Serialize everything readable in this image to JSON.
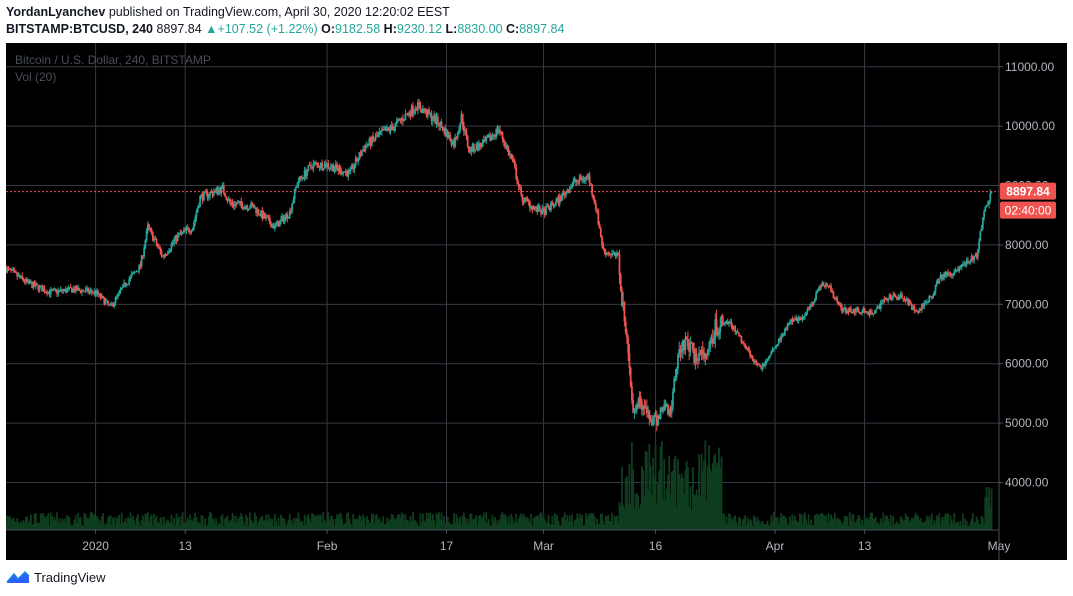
{
  "header": {
    "author": "YordanLyanchev",
    "publish_text": "published on TradingView.com, April 30, 2020 12:20:02 EEST"
  },
  "ohlc": {
    "symbol": "BITSTAMP:BTCUSD, 240",
    "last": "8897.84",
    "change": "+107.52 (+1.22%)",
    "open_label": "O:",
    "open": "9182.58",
    "high_label": "H:",
    "high": "9230.12",
    "low_label": "L:",
    "low": "8830.00",
    "close_label": "C:",
    "close": "8897.84"
  },
  "chart_meta": {
    "series_title": "Bitcoin / U.S. Dollar, 240, BITSTAMP",
    "volume_title": "Vol (20)",
    "price_label": "8897.84",
    "countdown_label": "02:40:00"
  },
  "footer": {
    "brand": "TradingView"
  },
  "colors": {
    "up": "#26a69a",
    "down": "#ef5350",
    "volume": "#0f3d1f",
    "grid": "#363a45",
    "axis_text": "#b2b5be",
    "background": "#000000"
  },
  "chart_data": {
    "type": "candlestick",
    "title": "Bitcoin / U.S. Dollar, 240, BITSTAMP",
    "ylim": [
      3200,
      11400
    ],
    "yticks": [
      4000,
      5000,
      6000,
      7000,
      8000,
      9000,
      10000,
      11000
    ],
    "ytick_labels": [
      "4000.00",
      "5000.00",
      "6000.00",
      "7000.00",
      "8000.00",
      "9000.00",
      "10000.00",
      "11000.00"
    ],
    "xlim": [
      "2019-12-20",
      "2020-05-01"
    ],
    "xticks": [
      {
        "date": "2020-01-01",
        "label": "2020"
      },
      {
        "date": "2020-01-13",
        "label": "13"
      },
      {
        "date": "2020-02-01",
        "label": "Feb"
      },
      {
        "date": "2020-02-17",
        "label": "17"
      },
      {
        "date": "2020-03-01",
        "label": "Mar"
      },
      {
        "date": "2020-03-16",
        "label": "16"
      },
      {
        "date": "2020-04-01",
        "label": "Apr"
      },
      {
        "date": "2020-04-13",
        "label": "13"
      },
      {
        "date": "2020-05-01",
        "label": "May"
      }
    ],
    "last_price": 8897.84,
    "grid": true,
    "closes": [
      {
        "date": "2019-12-20",
        "close": 7600
      },
      {
        "date": "2019-12-23",
        "close": 7350
      },
      {
        "date": "2019-12-26",
        "close": 7200
      },
      {
        "date": "2019-12-29",
        "close": 7250
      },
      {
        "date": "2020-01-01",
        "close": 7200
      },
      {
        "date": "2020-01-03",
        "close": 6950
      },
      {
        "date": "2020-01-05",
        "close": 7350
      },
      {
        "date": "2020-01-07",
        "close": 7650
      },
      {
        "date": "2020-01-08",
        "close": 8300
      },
      {
        "date": "2020-01-10",
        "close": 7800
      },
      {
        "date": "2020-01-12",
        "close": 8150
      },
      {
        "date": "2020-01-14",
        "close": 8300
      },
      {
        "date": "2020-01-15",
        "close": 8800
      },
      {
        "date": "2020-01-18",
        "close": 8950
      },
      {
        "date": "2020-01-19",
        "close": 8700
      },
      {
        "date": "2020-01-22",
        "close": 8650
      },
      {
        "date": "2020-01-25",
        "close": 8300
      },
      {
        "date": "2020-01-27",
        "close": 8550
      },
      {
        "date": "2020-01-28",
        "close": 9050
      },
      {
        "date": "2020-01-30",
        "close": 9350
      },
      {
        "date": "2020-02-01",
        "close": 9350
      },
      {
        "date": "2020-02-04",
        "close": 9200
      },
      {
        "date": "2020-02-06",
        "close": 9650
      },
      {
        "date": "2020-02-08",
        "close": 9850
      },
      {
        "date": "2020-02-10",
        "close": 10000
      },
      {
        "date": "2020-02-13",
        "close": 10350
      },
      {
        "date": "2020-02-14",
        "close": 10250
      },
      {
        "date": "2020-02-16",
        "close": 10050
      },
      {
        "date": "2020-02-18",
        "close": 9700
      },
      {
        "date": "2020-02-19",
        "close": 10150
      },
      {
        "date": "2020-02-20",
        "close": 9600
      },
      {
        "date": "2020-02-22",
        "close": 9700
      },
      {
        "date": "2020-02-24",
        "close": 9950
      },
      {
        "date": "2020-02-26",
        "close": 9350
      },
      {
        "date": "2020-02-27",
        "close": 8800
      },
      {
        "date": "2020-02-29",
        "close": 8600
      },
      {
        "date": "2020-03-01",
        "close": 8550
      },
      {
        "date": "2020-03-03",
        "close": 8750
      },
      {
        "date": "2020-03-05",
        "close": 9050
      },
      {
        "date": "2020-03-07",
        "close": 9150
      },
      {
        "date": "2020-03-08",
        "close": 8650
      },
      {
        "date": "2020-03-09",
        "close": 7900
      },
      {
        "date": "2020-03-11",
        "close": 7800
      },
      {
        "date": "2020-03-12",
        "close": 6500
      },
      {
        "date": "2020-03-13",
        "close": 5300
      },
      {
        "date": "2020-03-14",
        "close": 5400
      },
      {
        "date": "2020-03-15",
        "close": 5100
      },
      {
        "date": "2020-03-16",
        "close": 5000
      },
      {
        "date": "2020-03-17",
        "close": 5300
      },
      {
        "date": "2020-03-18",
        "close": 5200
      },
      {
        "date": "2020-03-19",
        "close": 6200
      },
      {
        "date": "2020-03-20",
        "close": 6400
      },
      {
        "date": "2020-03-21",
        "close": 6150
      },
      {
        "date": "2020-03-23",
        "close": 6100
      },
      {
        "date": "2020-03-24",
        "close": 6600
      },
      {
        "date": "2020-03-26",
        "close": 6700
      },
      {
        "date": "2020-03-28",
        "close": 6300
      },
      {
        "date": "2020-03-30",
        "close": 5900
      },
      {
        "date": "2020-04-01",
        "close": 6300
      },
      {
        "date": "2020-04-03",
        "close": 6700
      },
      {
        "date": "2020-04-05",
        "close": 6800
      },
      {
        "date": "2020-04-07",
        "close": 7300
      },
      {
        "date": "2020-04-08",
        "close": 7350
      },
      {
        "date": "2020-04-10",
        "close": 6900
      },
      {
        "date": "2020-04-12",
        "close": 6900
      },
      {
        "date": "2020-04-14",
        "close": 6850
      },
      {
        "date": "2020-04-16",
        "close": 7100
      },
      {
        "date": "2020-04-18",
        "close": 7150
      },
      {
        "date": "2020-04-20",
        "close": 6850
      },
      {
        "date": "2020-04-22",
        "close": 7150
      },
      {
        "date": "2020-04-23",
        "close": 7450
      },
      {
        "date": "2020-04-25",
        "close": 7550
      },
      {
        "date": "2020-04-27",
        "close": 7750
      },
      {
        "date": "2020-04-28",
        "close": 7800
      },
      {
        "date": "2020-04-29",
        "close": 8600
      },
      {
        "date": "2020-04-30",
        "close": 8897.84
      }
    ]
  }
}
